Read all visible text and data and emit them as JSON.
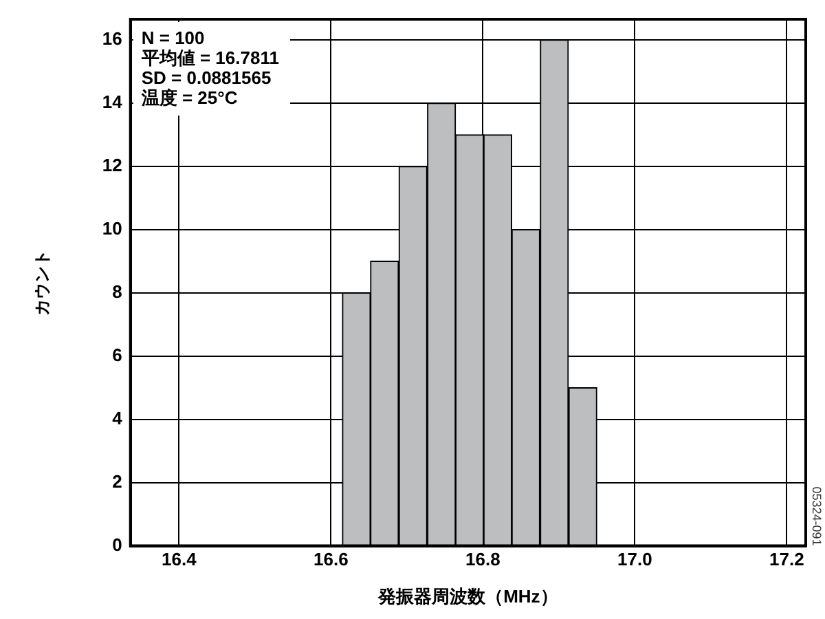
{
  "chart_data": {
    "type": "histogram",
    "xlabel": "発振器周波数（MHz）",
    "ylabel": "カウント",
    "bins": [
      16.615,
      16.652,
      16.689,
      16.727,
      16.764,
      16.801,
      16.838,
      16.875,
      16.913,
      16.95
    ],
    "values": [
      8,
      9,
      12,
      14,
      13,
      13,
      10,
      16,
      5
    ],
    "color": "#bdbec0",
    "xlim": [
      16.336,
      17.225
    ],
    "xticks": [
      {
        "value": 16.4,
        "label": "16.4"
      },
      {
        "value": 16.6,
        "label": "16.6"
      },
      {
        "value": 16.8,
        "label": "16.8"
      },
      {
        "value": 17.0,
        "label": "17.0"
      },
      {
        "value": 17.2,
        "label": "17.2"
      }
    ],
    "ylim": [
      0,
      16.65
    ],
    "yticks": [
      0,
      2,
      4,
      6,
      8,
      10,
      12,
      14,
      16
    ],
    "grid": true,
    "legend": false,
    "annotations": [
      "N = 100",
      "平均値 = 16.7811",
      "SD = 0.0881565",
      "温度 = 25°C",
      "05324-091"
    ]
  }
}
